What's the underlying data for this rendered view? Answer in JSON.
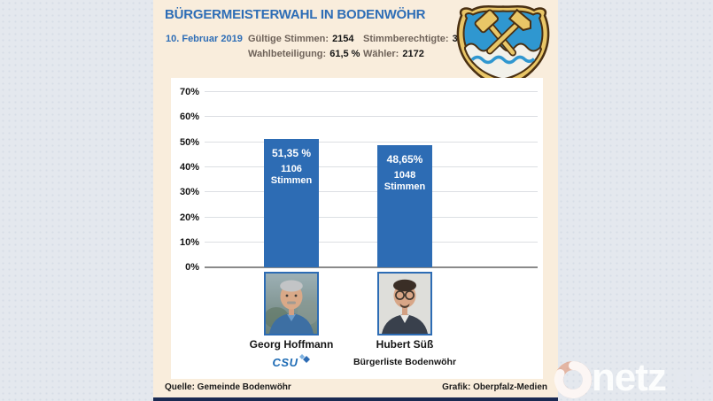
{
  "header": {
    "title": "BÜRGERMEISTERWAHL IN BODENWÖHR",
    "date": "10. Februar 2019",
    "stats": [
      {
        "label": "Gültige Stimmen:",
        "value": "2154"
      },
      {
        "label": "Stimmberechtigte:",
        "value": "3532"
      },
      {
        "label": "Wahlbeteiligung:",
        "value": "61,5 %"
      },
      {
        "label": "Wähler:",
        "value": "2172"
      }
    ]
  },
  "chart_data": {
    "type": "bar",
    "title": "BÜRGERMEISTERWAHL IN BODENWÖHR",
    "categories": [
      "Georg Hoffmann",
      "Hubert Süß"
    ],
    "values": [
      51.35,
      48.65
    ],
    "ylim": [
      0,
      70
    ],
    "yticks": [
      "70%",
      "60%",
      "50%",
      "40%",
      "30%",
      "20%",
      "10%",
      "0%"
    ],
    "grid": true,
    "legend": "none",
    "bar_color": "#2d6cb4",
    "candidates": [
      {
        "name": "Georg Hoffmann",
        "party": "CSU",
        "value": 51.35,
        "pct_label": "51,35 %",
        "votes": "1106",
        "votes_word": "Stimmen"
      },
      {
        "name": "Hubert Süß",
        "party": "Bürgerliste Bodenwöhr",
        "value": 48.65,
        "pct_label": "48,65%",
        "votes": "1048",
        "votes_word": "Stimmen"
      }
    ]
  },
  "footer": {
    "source": "Quelle: Gemeinde Bodenwöhr",
    "credit": "Grafik: Oberpfalz-Medien"
  },
  "watermark": {
    "brand": "netz",
    "tld": ".de"
  },
  "colors": {
    "page_bg": "#e4e8ee",
    "card_bg": "#f9eddc",
    "title_blue": "#2d6db6",
    "bar_blue": "#2d6cb4",
    "stat_label": "#6e6259",
    "navy_strip": "#1a2a52"
  }
}
